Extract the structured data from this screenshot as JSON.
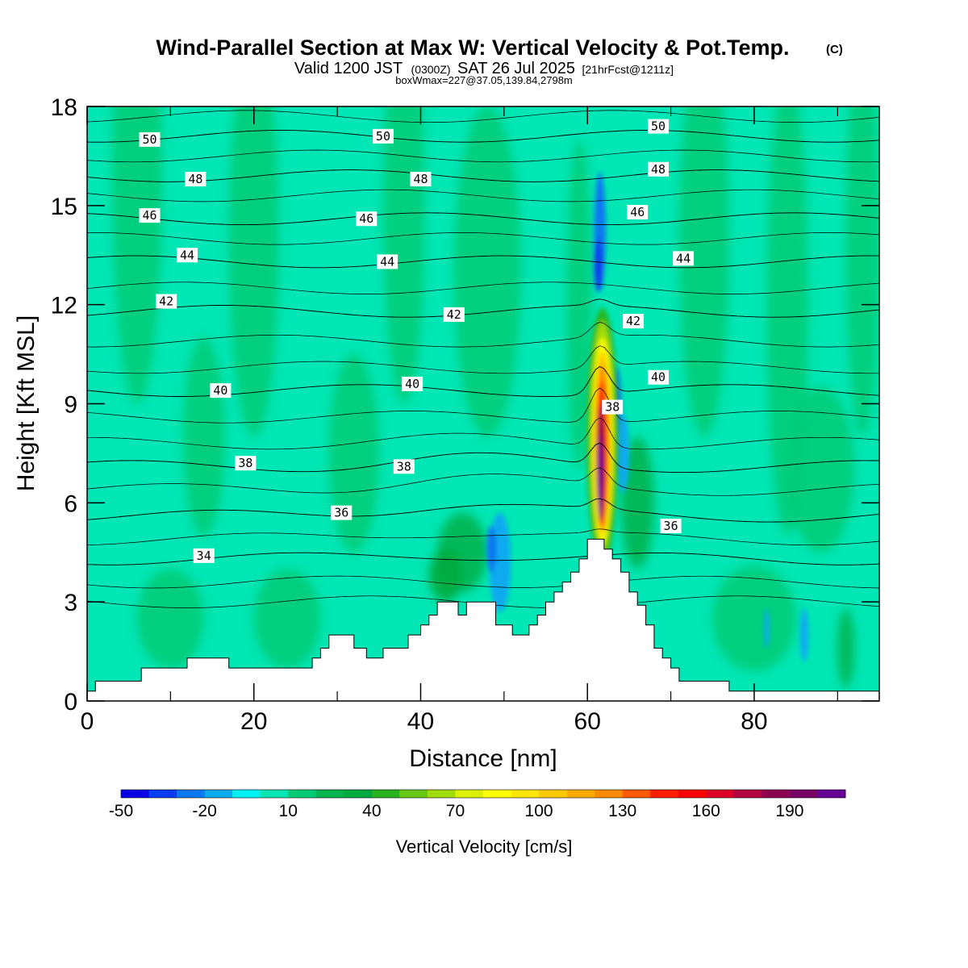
{
  "title": {
    "main": "Wind-Parallel Section at Max W: Vertical Velocity & Pot.Temp.",
    "copyright": "(C)",
    "line2_a": "Valid 1200 JST",
    "line2_b": "(0300Z)",
    "line2_c": "SAT 26 Jul 2025",
    "line2_d": "[21hrFcst@1211z]",
    "line3": "boxWmax=227@37.05,139.84,2798m"
  },
  "chart_data": {
    "type": "heatmap",
    "xlabel": "Distance [nm]",
    "ylabel": "Height [Kft MSL]",
    "xlim": [
      0,
      95
    ],
    "ylim": [
      0,
      18
    ],
    "x_ticks": [
      "0",
      "20",
      "40",
      "60",
      "80"
    ],
    "y_ticks": [
      "0",
      "3",
      "6",
      "9",
      "12",
      "15",
      "18"
    ],
    "colorbar": {
      "label": "Vertical Velocity [cm/s]",
      "tick_labels": [
        "-50",
        "-20",
        "10",
        "40",
        "70",
        "100",
        "130",
        "160",
        "190"
      ],
      "min": -50,
      "step": 10,
      "colors": [
        "#0a00e6",
        "#0a3cf0",
        "#0a78f0",
        "#0aaaf0",
        "#00f0f0",
        "#00e6b4",
        "#00cc78",
        "#00b450",
        "#00aa3c",
        "#28b41e",
        "#64c814",
        "#a0dc0a",
        "#dcf000",
        "#ffff00",
        "#ffe600",
        "#ffc800",
        "#ffaa00",
        "#ff8c00",
        "#ff5a00",
        "#ff1e00",
        "#ff0000",
        "#dc0028",
        "#b4003c",
        "#8c0050",
        "#780064",
        "#640096"
      ]
    },
    "w_max_cm_s": 227,
    "theta_contours": [
      {
        "label": "34",
        "height_kft": 4.3
      },
      {
        "label": "36",
        "height_kft": 5.6
      },
      {
        "label": "38",
        "height_kft": 7.1
      },
      {
        "label": "40",
        "height_kft": 9.4
      },
      {
        "label": "42",
        "height_kft": 11.8
      },
      {
        "label": "44",
        "height_kft": 13.3
      },
      {
        "label": "46",
        "height_kft": 14.6
      },
      {
        "label": "48",
        "height_kft": 15.9
      },
      {
        "label": "50",
        "height_kft": 17.1
      }
    ],
    "contour_labels": [
      {
        "text": "50",
        "x": 7.5,
        "y": 17.0
      },
      {
        "text": "50",
        "x": 35.5,
        "y": 17.1
      },
      {
        "text": "50",
        "x": 68.5,
        "y": 17.4
      },
      {
        "text": "48",
        "x": 13.0,
        "y": 15.8
      },
      {
        "text": "48",
        "x": 40.0,
        "y": 15.8
      },
      {
        "text": "48",
        "x": 68.5,
        "y": 16.1
      },
      {
        "text": "46",
        "x": 7.5,
        "y": 14.7
      },
      {
        "text": "46",
        "x": 33.5,
        "y": 14.6
      },
      {
        "text": "46",
        "x": 66.0,
        "y": 14.8
      },
      {
        "text": "44",
        "x": 12.0,
        "y": 13.5
      },
      {
        "text": "44",
        "x": 36.0,
        "y": 13.3
      },
      {
        "text": "44",
        "x": 71.5,
        "y": 13.4
      },
      {
        "text": "42",
        "x": 9.5,
        "y": 12.1
      },
      {
        "text": "42",
        "x": 44.0,
        "y": 11.7
      },
      {
        "text": "42",
        "x": 65.5,
        "y": 11.5
      },
      {
        "text": "40",
        "x": 16.0,
        "y": 9.4
      },
      {
        "text": "40",
        "x": 39.0,
        "y": 9.6
      },
      {
        "text": "40",
        "x": 68.5,
        "y": 9.8
      },
      {
        "text": "38",
        "x": 19.0,
        "y": 7.2
      },
      {
        "text": "38",
        "x": 38.0,
        "y": 7.1
      },
      {
        "text": "38",
        "x": 63.0,
        "y": 8.9
      },
      {
        "text": "36",
        "x": 30.5,
        "y": 5.7
      },
      {
        "text": "36",
        "x": 70.0,
        "y": 5.3
      },
      {
        "text": "34",
        "x": 14.0,
        "y": 4.4
      }
    ],
    "terrain": [
      {
        "x": 0,
        "y": 0.3
      },
      {
        "x": 1,
        "y": 0.6
      },
      {
        "x": 6.5,
        "y": 1.0
      },
      {
        "x": 12,
        "y": 1.3
      },
      {
        "x": 17,
        "y": 1.0
      },
      {
        "x": 27,
        "y": 1.3
      },
      {
        "x": 28,
        "y": 1.6
      },
      {
        "x": 29,
        "y": 2.0
      },
      {
        "x": 32,
        "y": 1.6
      },
      {
        "x": 33.5,
        "y": 1.3
      },
      {
        "x": 35.5,
        "y": 1.6
      },
      {
        "x": 38.5,
        "y": 2.0
      },
      {
        "x": 40,
        "y": 2.3
      },
      {
        "x": 41,
        "y": 2.6
      },
      {
        "x": 42,
        "y": 3.0
      },
      {
        "x": 44.5,
        "y": 2.6
      },
      {
        "x": 45.5,
        "y": 3.0
      },
      {
        "x": 49,
        "y": 2.3
      },
      {
        "x": 51,
        "y": 2.0
      },
      {
        "x": 53,
        "y": 2.3
      },
      {
        "x": 54,
        "y": 2.6
      },
      {
        "x": 55,
        "y": 3.0
      },
      {
        "x": 56,
        "y": 3.3
      },
      {
        "x": 57,
        "y": 3.6
      },
      {
        "x": 58,
        "y": 3.9
      },
      {
        "x": 59,
        "y": 4.3
      },
      {
        "x": 60,
        "y": 4.9
      },
      {
        "x": 62,
        "y": 4.6
      },
      {
        "x": 63,
        "y": 4.3
      },
      {
        "x": 64,
        "y": 3.9
      },
      {
        "x": 65,
        "y": 3.3
      },
      {
        "x": 66,
        "y": 2.9
      },
      {
        "x": 67,
        "y": 2.3
      },
      {
        "x": 68,
        "y": 1.6
      },
      {
        "x": 69,
        "y": 1.3
      },
      {
        "x": 70,
        "y": 1.0
      },
      {
        "x": 71,
        "y": 0.6
      },
      {
        "x": 77,
        "y": 0.3
      },
      {
        "x": 95,
        "y": 0.3
      }
    ]
  }
}
